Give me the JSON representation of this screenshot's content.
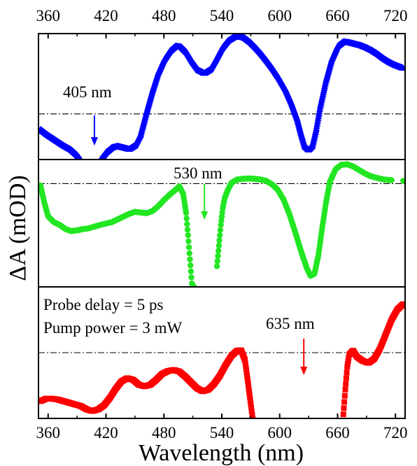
{
  "chart_data": {
    "type": "scatter",
    "xlabel": "Wavelength (nm)",
    "ylabel": "ΔA (mOD)",
    "xlim": [
      350,
      730
    ],
    "x_ticks": [
      360,
      420,
      480,
      540,
      600,
      660,
      720
    ],
    "y_ticks_shown": false,
    "grid": false,
    "legend": "none",
    "panels": [
      {
        "name": "top",
        "color": "#0000ff",
        "marker": "triangle",
        "ylim": [
          -1.25,
          2.2
        ],
        "zero_line": true,
        "annotation": {
          "text": "405 nm",
          "arrow_x": 408
        },
        "points": [
          [
            352,
            -0.42
          ],
          [
            360,
            -0.58
          ],
          [
            368,
            -0.72
          ],
          [
            376,
            -0.86
          ],
          [
            384,
            -0.98
          ],
          [
            390,
            -1.12
          ],
          [
            394,
            -1.25
          ],
          [
            414,
            -1.25
          ],
          [
            420,
            -1.05
          ],
          [
            426,
            -0.92
          ],
          [
            432,
            -0.88
          ],
          [
            438,
            -0.92
          ],
          [
            444,
            -0.96
          ],
          [
            450,
            -0.86
          ],
          [
            456,
            -0.55
          ],
          [
            462,
            0.05
          ],
          [
            468,
            0.62
          ],
          [
            474,
            1.12
          ],
          [
            480,
            1.48
          ],
          [
            486,
            1.72
          ],
          [
            492,
            1.86
          ],
          [
            498,
            1.84
          ],
          [
            504,
            1.68
          ],
          [
            510,
            1.42
          ],
          [
            516,
            1.2
          ],
          [
            522,
            1.12
          ],
          [
            528,
            1.22
          ],
          [
            534,
            1.5
          ],
          [
            540,
            1.8
          ],
          [
            546,
            2.0
          ],
          [
            552,
            2.1
          ],
          [
            558,
            2.13
          ],
          [
            564,
            2.08
          ],
          [
            570,
            1.96
          ],
          [
            576,
            1.8
          ],
          [
            582,
            1.62
          ],
          [
            588,
            1.42
          ],
          [
            594,
            1.2
          ],
          [
            600,
            0.96
          ],
          [
            606,
            0.68
          ],
          [
            612,
            0.32
          ],
          [
            618,
            -0.12
          ],
          [
            622,
            -0.52
          ],
          [
            626,
            -0.88
          ],
          [
            630,
            -0.98
          ],
          [
            634,
            -0.86
          ],
          [
            638,
            -0.4
          ],
          [
            642,
            0.2
          ],
          [
            648,
            0.92
          ],
          [
            654,
            1.5
          ],
          [
            660,
            1.86
          ],
          [
            666,
            1.98
          ],
          [
            672,
            1.96
          ],
          [
            678,
            1.92
          ],
          [
            684,
            1.88
          ],
          [
            690,
            1.82
          ],
          [
            696,
            1.74
          ],
          [
            702,
            1.64
          ],
          [
            708,
            1.52
          ],
          [
            714,
            1.42
          ],
          [
            720,
            1.34
          ],
          [
            728,
            1.26
          ]
        ]
      },
      {
        "name": "middle",
        "color": "#22e622",
        "marker": "circle",
        "ylim": [
          -3.0,
          0.7
        ],
        "zero_line": true,
        "annotation": {
          "text": "530 nm",
          "arrow_x": 522
        },
        "points": [
          [
            352,
            -0.05
          ],
          [
            356,
            -0.55
          ],
          [
            360,
            -0.95
          ],
          [
            366,
            -1.12
          ],
          [
            372,
            -1.2
          ],
          [
            378,
            -1.32
          ],
          [
            384,
            -1.38
          ],
          [
            390,
            -1.36
          ],
          [
            396,
            -1.32
          ],
          [
            402,
            -1.3
          ],
          [
            408,
            -1.25
          ],
          [
            414,
            -1.2
          ],
          [
            420,
            -1.16
          ],
          [
            426,
            -1.12
          ],
          [
            432,
            -1.04
          ],
          [
            438,
            -0.96
          ],
          [
            444,
            -0.88
          ],
          [
            450,
            -0.82
          ],
          [
            456,
            -0.84
          ],
          [
            462,
            -0.86
          ],
          [
            468,
            -0.8
          ],
          [
            474,
            -0.66
          ],
          [
            480,
            -0.48
          ],
          [
            486,
            -0.32
          ],
          [
            492,
            -0.18
          ],
          [
            496,
            -0.08
          ],
          [
            500,
            -0.3
          ],
          [
            503,
            -0.85
          ],
          [
            505,
            -1.5
          ],
          [
            507,
            -2.2
          ],
          [
            509,
            -2.9
          ],
          [
            511,
            -3.0
          ],
          [
            535,
            -2.4
          ],
          [
            537,
            -1.8
          ],
          [
            539,
            -1.2
          ],
          [
            541,
            -0.72
          ],
          [
            543,
            -0.42
          ],
          [
            546,
            -0.2
          ],
          [
            550,
            0.02
          ],
          [
            556,
            0.12
          ],
          [
            562,
            0.14
          ],
          [
            568,
            0.15
          ],
          [
            574,
            0.14
          ],
          [
            580,
            0.12
          ],
          [
            586,
            0.08
          ],
          [
            592,
            -0.02
          ],
          [
            598,
            -0.18
          ],
          [
            604,
            -0.46
          ],
          [
            610,
            -0.88
          ],
          [
            616,
            -1.4
          ],
          [
            622,
            -1.95
          ],
          [
            628,
            -2.45
          ],
          [
            632,
            -2.68
          ],
          [
            636,
            -2.62
          ],
          [
            640,
            -2.1
          ],
          [
            644,
            -1.3
          ],
          [
            648,
            -0.55
          ],
          [
            652,
            0.05
          ],
          [
            658,
            0.42
          ],
          [
            664,
            0.55
          ],
          [
            670,
            0.56
          ],
          [
            676,
            0.5
          ],
          [
            682,
            0.4
          ],
          [
            688,
            0.3
          ],
          [
            694,
            0.22
          ],
          [
            700,
            0.17
          ],
          [
            708,
            0.12
          ],
          [
            716,
            0.1
          ],
          [
            728,
            0.08
          ]
        ]
      },
      {
        "name": "bottom",
        "color": "#ff0000",
        "marker": "square",
        "ylim": [
          -1.6,
          1.6
        ],
        "zero_line": true,
        "annotation": {
          "text": "635 nm",
          "arrow_x": 625
        },
        "points": [
          [
            352,
            -1.18
          ],
          [
            358,
            -1.12
          ],
          [
            364,
            -1.12
          ],
          [
            370,
            -1.14
          ],
          [
            376,
            -1.18
          ],
          [
            382,
            -1.22
          ],
          [
            388,
            -1.26
          ],
          [
            394,
            -1.3
          ],
          [
            400,
            -1.38
          ],
          [
            406,
            -1.42
          ],
          [
            412,
            -1.38
          ],
          [
            418,
            -1.28
          ],
          [
            424,
            -1.1
          ],
          [
            430,
            -0.88
          ],
          [
            436,
            -0.7
          ],
          [
            442,
            -0.62
          ],
          [
            448,
            -0.66
          ],
          [
            454,
            -0.78
          ],
          [
            460,
            -0.82
          ],
          [
            466,
            -0.78
          ],
          [
            472,
            -0.66
          ],
          [
            478,
            -0.52
          ],
          [
            484,
            -0.45
          ],
          [
            490,
            -0.42
          ],
          [
            496,
            -0.46
          ],
          [
            502,
            -0.58
          ],
          [
            508,
            -0.72
          ],
          [
            514,
            -0.86
          ],
          [
            520,
            -0.94
          ],
          [
            526,
            -0.9
          ],
          [
            532,
            -0.76
          ],
          [
            538,
            -0.56
          ],
          [
            544,
            -0.3
          ],
          [
            550,
            -0.08
          ],
          [
            556,
            0.05
          ],
          [
            560,
            0.06
          ],
          [
            564,
            -0.18
          ],
          [
            567,
            -0.7
          ],
          [
            570,
            -1.25
          ],
          [
            572,
            -1.6
          ],
          [
            666,
            -1.5
          ],
          [
            668,
            -0.9
          ],
          [
            670,
            -0.35
          ],
          [
            672,
            -0.05
          ],
          [
            676,
            0.05
          ],
          [
            680,
            -0.1
          ],
          [
            686,
            -0.2
          ],
          [
            692,
            -0.25
          ],
          [
            698,
            -0.15
          ],
          [
            704,
            0.1
          ],
          [
            710,
            0.45
          ],
          [
            716,
            0.8
          ],
          [
            722,
            1.05
          ],
          [
            728,
            1.18
          ]
        ]
      }
    ]
  },
  "texts": {
    "probe_delay": "Probe delay = 5 ps",
    "pump_power": "Pump power = 3 mW"
  }
}
